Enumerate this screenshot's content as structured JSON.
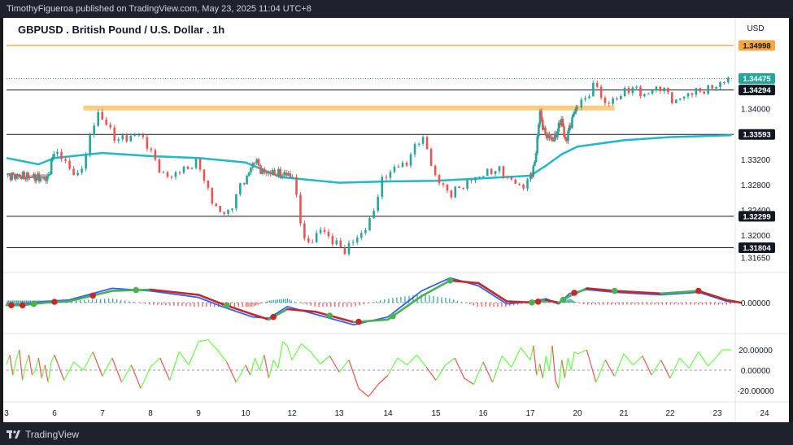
{
  "header": {
    "publisher": "TimothyFigueroa published on TradingView.com, May 23, 2025 11:04 UTC+8"
  },
  "footer": {
    "brand": "TradingView"
  },
  "colors": {
    "candle_up": "#26a69a",
    "candle_down": "#ef5350",
    "ma_line": "#1fb8cc",
    "resistance_zone": "#ffcc80",
    "orange_line": "#f5a742",
    "macd_fast": "#2962ff",
    "macd_signal_up": "#4caf50",
    "macd_signal_down": "#c62828",
    "osc_up": "#66ff44",
    "osc_down": "#ef5350",
    "current_price_bg": "#26a69a"
  },
  "chart_data": {
    "type": "candlestick",
    "title": "GBPUSD . British Pound / U.S. Dollar . 1h",
    "currency": "USD",
    "x_ticks": [
      "3",
      "6",
      "7",
      "8",
      "9",
      "10",
      "12",
      "13",
      "14",
      "15",
      "16",
      "17",
      "20",
      "21",
      "22",
      "23",
      "24"
    ],
    "price_axis_ticks": [
      "1.34000",
      "1.33200",
      "1.32800",
      "1.32400",
      "1.32000",
      "1.31650"
    ],
    "price_labels": [
      "1.34998",
      "1.34475",
      "1.34294",
      "1.33593",
      "1.32299",
      "1.31804"
    ],
    "current_price": "1.34475",
    "horizontal_levels": [
      1.34294,
      1.33593,
      1.32299,
      1.31804
    ],
    "orange_level": 1.34998,
    "resistance_zone": 1.3401,
    "ylim": [
      1.3145,
      1.3515
    ],
    "price_path": [
      [
        3,
        1.3295
      ],
      [
        5.6,
        1.329
      ],
      [
        6.0,
        1.3335
      ],
      [
        6.5,
        1.329
      ],
      [
        6.9,
        1.3395
      ],
      [
        7.3,
        1.335
      ],
      [
        7.8,
        1.336
      ],
      [
        8.3,
        1.329
      ],
      [
        9.0,
        1.3315
      ],
      [
        9.3,
        1.325
      ],
      [
        9.6,
        1.323
      ],
      [
        9.9,
        1.328
      ],
      [
        10.4,
        1.332
      ],
      [
        10.7,
        1.33
      ],
      [
        12.0,
        1.3295
      ],
      [
        12.3,
        1.318
      ],
      [
        12.6,
        1.321
      ],
      [
        13.1,
        1.3175
      ],
      [
        13.6,
        1.3215
      ],
      [
        13.9,
        1.329
      ],
      [
        14.1,
        1.3305
      ],
      [
        14.4,
        1.3315
      ],
      [
        14.7,
        1.336
      ],
      [
        15.0,
        1.329
      ],
      [
        15.3,
        1.3265
      ],
      [
        15.8,
        1.329
      ],
      [
        16.3,
        1.3305
      ],
      [
        16.8,
        1.3275
      ],
      [
        17.3,
        1.3315
      ],
      [
        17.6,
        1.3395
      ],
      [
        17.9,
        1.336
      ],
      [
        18.5,
        1.335
      ],
      [
        19.0,
        1.3385
      ],
      [
        19.2,
        1.3345
      ],
      [
        19.5,
        1.337
      ],
      [
        19.8,
        1.3395
      ],
      [
        20.1,
        1.341
      ],
      [
        20.4,
        1.344
      ],
      [
        20.6,
        1.3405
      ],
      [
        21.2,
        1.3435
      ],
      [
        21.4,
        1.342
      ],
      [
        21.8,
        1.3435
      ],
      [
        22.1,
        1.341
      ],
      [
        22.4,
        1.3425
      ],
      [
        22.8,
        1.343
      ],
      [
        23.2,
        1.3445
      ],
      [
        23.3,
        1.3447
      ]
    ],
    "moving_average": [
      [
        3,
        1.3322
      ],
      [
        5.0,
        1.3312
      ],
      [
        6.0,
        1.3322
      ],
      [
        7.0,
        1.333
      ],
      [
        8.0,
        1.3325
      ],
      [
        9.0,
        1.3322
      ],
      [
        10.0,
        1.3315
      ],
      [
        11.5,
        1.3292
      ],
      [
        13.0,
        1.3283
      ],
      [
        14.0,
        1.3285
      ],
      [
        15.0,
        1.3286
      ],
      [
        16.0,
        1.329
      ],
      [
        17.0,
        1.3294
      ],
      [
        18.0,
        1.331
      ],
      [
        19.0,
        1.3328
      ],
      [
        20.0,
        1.334
      ],
      [
        21.0,
        1.335
      ],
      [
        22.0,
        1.3355
      ],
      [
        23.3,
        1.3358
      ]
    ],
    "macd": {
      "axis_ticks": [
        "0.00000"
      ],
      "ylim": [
        -1.0,
        1.0
      ],
      "fast": [
        [
          3,
          -0.05
        ],
        [
          4,
          -0.05
        ],
        [
          4.7,
          0.0
        ],
        [
          5.5,
          0.05
        ],
        [
          6.3,
          0.1
        ],
        [
          7.2,
          0.55
        ],
        [
          8.0,
          0.45
        ],
        [
          9.0,
          0.2
        ],
        [
          9.5,
          -0.15
        ],
        [
          10.3,
          -0.55
        ],
        [
          11.0,
          -0.6
        ],
        [
          11.8,
          -0.15
        ],
        [
          12.5,
          -0.45
        ],
        [
          13.3,
          -0.85
        ],
        [
          14.0,
          -0.55
        ],
        [
          14.7,
          0.45
        ],
        [
          15.3,
          0.95
        ],
        [
          15.9,
          0.65
        ],
        [
          16.5,
          -0.05
        ],
        [
          17.2,
          0.05
        ],
        [
          18.0,
          0.15
        ],
        [
          18.8,
          -0.05
        ],
        [
          19.5,
          0.35
        ],
        [
          20.2,
          0.5
        ],
        [
          20.8,
          0.4
        ],
        [
          21.8,
          0.3
        ],
        [
          22.6,
          0.4
        ],
        [
          23.2,
          0.05
        ],
        [
          23.5,
          0.0
        ]
      ],
      "signal": [
        [
          3,
          -0.1
        ],
        [
          4,
          -0.1
        ],
        [
          4.7,
          -0.05
        ],
        [
          5.5,
          0.0
        ],
        [
          6.3,
          0.05
        ],
        [
          7.2,
          0.45
        ],
        [
          8.0,
          0.5
        ],
        [
          9.0,
          0.3
        ],
        [
          9.5,
          -0.05
        ],
        [
          10.3,
          -0.45
        ],
        [
          11.0,
          -0.65
        ],
        [
          11.8,
          -0.25
        ],
        [
          12.5,
          -0.35
        ],
        [
          13.3,
          -0.75
        ],
        [
          14.0,
          -0.65
        ],
        [
          14.7,
          0.25
        ],
        [
          15.3,
          0.85
        ],
        [
          15.9,
          0.75
        ],
        [
          16.5,
          0.05
        ],
        [
          17.2,
          0.0
        ],
        [
          18.0,
          0.1
        ],
        [
          18.8,
          0.0
        ],
        [
          19.5,
          0.25
        ],
        [
          20.2,
          0.55
        ],
        [
          20.8,
          0.45
        ],
        [
          21.8,
          0.35
        ],
        [
          22.6,
          0.45
        ],
        [
          23.2,
          0.1
        ],
        [
          23.5,
          0.0
        ]
      ],
      "cross_up": [
        4.7,
        7.7,
        9.6,
        12.8,
        14.1,
        15.3,
        17.1,
        19.1,
        20.8
      ],
      "cross_down": [
        3.3,
        4.0,
        6.0,
        6.8,
        11.2,
        13.4,
        17.5,
        19.8,
        22.6
      ]
    },
    "oscillator": {
      "axis_ticks": [
        "20.00000",
        "0.00000",
        "-20.00000"
      ],
      "ylim": [
        -30,
        30
      ],
      "values": [
        [
          3,
          5
        ],
        [
          3.2,
          15
        ],
        [
          3.4,
          -5
        ],
        [
          3.6,
          10
        ],
        [
          3.8,
          20
        ],
        [
          4.0,
          -10
        ],
        [
          4.2,
          5
        ],
        [
          4.4,
          15
        ],
        [
          4.6,
          -5
        ],
        [
          4.8,
          0
        ],
        [
          5.0,
          12
        ],
        [
          5.2,
          -8
        ],
        [
          5.4,
          5
        ],
        [
          5.6,
          -12
        ],
        [
          5.8,
          8
        ],
        [
          6.0,
          15
        ],
        [
          6.2,
          -10
        ],
        [
          6.4,
          8
        ],
        [
          6.6,
          0
        ],
        [
          6.8,
          18
        ],
        [
          7.0,
          -6
        ],
        [
          7.2,
          12
        ],
        [
          7.4,
          -12
        ],
        [
          7.6,
          5
        ],
        [
          7.8,
          -18
        ],
        [
          8.0,
          3
        ],
        [
          8.2,
          12
        ],
        [
          8.4,
          -10
        ],
        [
          8.6,
          18
        ],
        [
          8.8,
          5
        ],
        [
          9.0,
          28
        ],
        [
          9.2,
          30
        ],
        [
          9.4,
          20
        ],
        [
          9.6,
          8
        ],
        [
          9.8,
          -12
        ],
        [
          10.0,
          5
        ],
        [
          10.2,
          -5
        ],
        [
          10.4,
          12
        ],
        [
          10.6,
          0
        ],
        [
          10.8,
          15
        ],
        [
          11.0,
          -8
        ],
        [
          11.2,
          10
        ],
        [
          11.4,
          2
        ],
        [
          11.6,
          28
        ],
        [
          11.8,
          24
        ],
        [
          12.0,
          10
        ],
        [
          12.2,
          26
        ],
        [
          12.4,
          18
        ],
        [
          12.6,
          6
        ],
        [
          12.8,
          14
        ],
        [
          13.0,
          -2
        ],
        [
          13.2,
          10
        ],
        [
          13.4,
          -18
        ],
        [
          13.6,
          -26
        ],
        [
          13.8,
          -14
        ],
        [
          14.0,
          -5
        ],
        [
          14.2,
          12
        ],
        [
          14.4,
          5
        ],
        [
          14.6,
          15
        ],
        [
          14.8,
          3
        ],
        [
          15.0,
          -10
        ],
        [
          15.2,
          5
        ],
        [
          15.4,
          12
        ],
        [
          15.6,
          -8
        ],
        [
          15.8,
          -14
        ],
        [
          16.0,
          8
        ],
        [
          16.2,
          -12
        ],
        [
          16.4,
          14
        ],
        [
          16.6,
          3
        ],
        [
          16.8,
          22
        ],
        [
          17.0,
          10
        ],
        [
          17.2,
          24
        ],
        [
          17.4,
          -5
        ],
        [
          17.6,
          6
        ],
        [
          17.8,
          -8
        ],
        [
          18.0,
          14
        ],
        [
          18.2,
          0
        ],
        [
          18.4,
          24
        ],
        [
          18.6,
          -10
        ],
        [
          18.8,
          -18
        ],
        [
          19.0,
          10
        ],
        [
          19.2,
          -8
        ],
        [
          19.4,
          12
        ],
        [
          19.6,
          0
        ],
        [
          19.8,
          18
        ],
        [
          20.0,
          16
        ],
        [
          20.2,
          20
        ],
        [
          20.4,
          -12
        ],
        [
          20.6,
          10
        ],
        [
          20.8,
          -6
        ],
        [
          21.0,
          16
        ],
        [
          21.2,
          5
        ],
        [
          21.4,
          14
        ],
        [
          21.6,
          -5
        ],
        [
          21.8,
          10
        ],
        [
          22.0,
          -8
        ],
        [
          22.2,
          12
        ],
        [
          22.4,
          2
        ],
        [
          22.6,
          18
        ],
        [
          22.8,
          4
        ],
        [
          23.0,
          14
        ],
        [
          23.1,
          20
        ],
        [
          23.3,
          20
        ]
      ]
    }
  }
}
